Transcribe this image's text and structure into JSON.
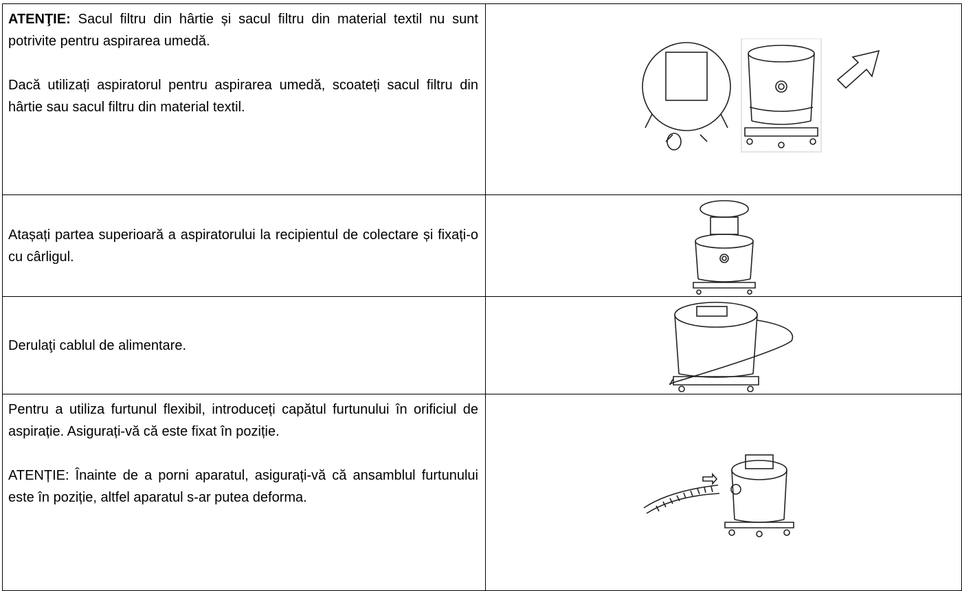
{
  "table": {
    "rows": [
      {
        "label": "ATENŢIE:",
        "text": "Sacul filtru din hârtie și sacul filtru din material textil nu sunt potrivite pentru aspirarea umedă.",
        "note": "Dacă utilizați aspiratorul pentru aspirarea umedă, scoateți sacul filtru din hârtie sau sacul filtru din material textil."
      },
      {
        "text": "Atașați partea superioară a aspiratorului la recipientul de colectare și fixați-o cu cârligul."
      },
      {
        "text": "Derulaţi cablul de alimentare."
      },
      {
        "text": "Pentru a utiliza furtunul flexibil, introduceți capătul furtunului în orificiul de aspirație. Asigurați-vă că este fixat în poziție.",
        "note": "ATENȚIE: Înainte de a porni aparatul, asigurați-vă că ansamblul furtunului este în poziție, altfel aparatul s-ar putea deforma."
      }
    ]
  }
}
